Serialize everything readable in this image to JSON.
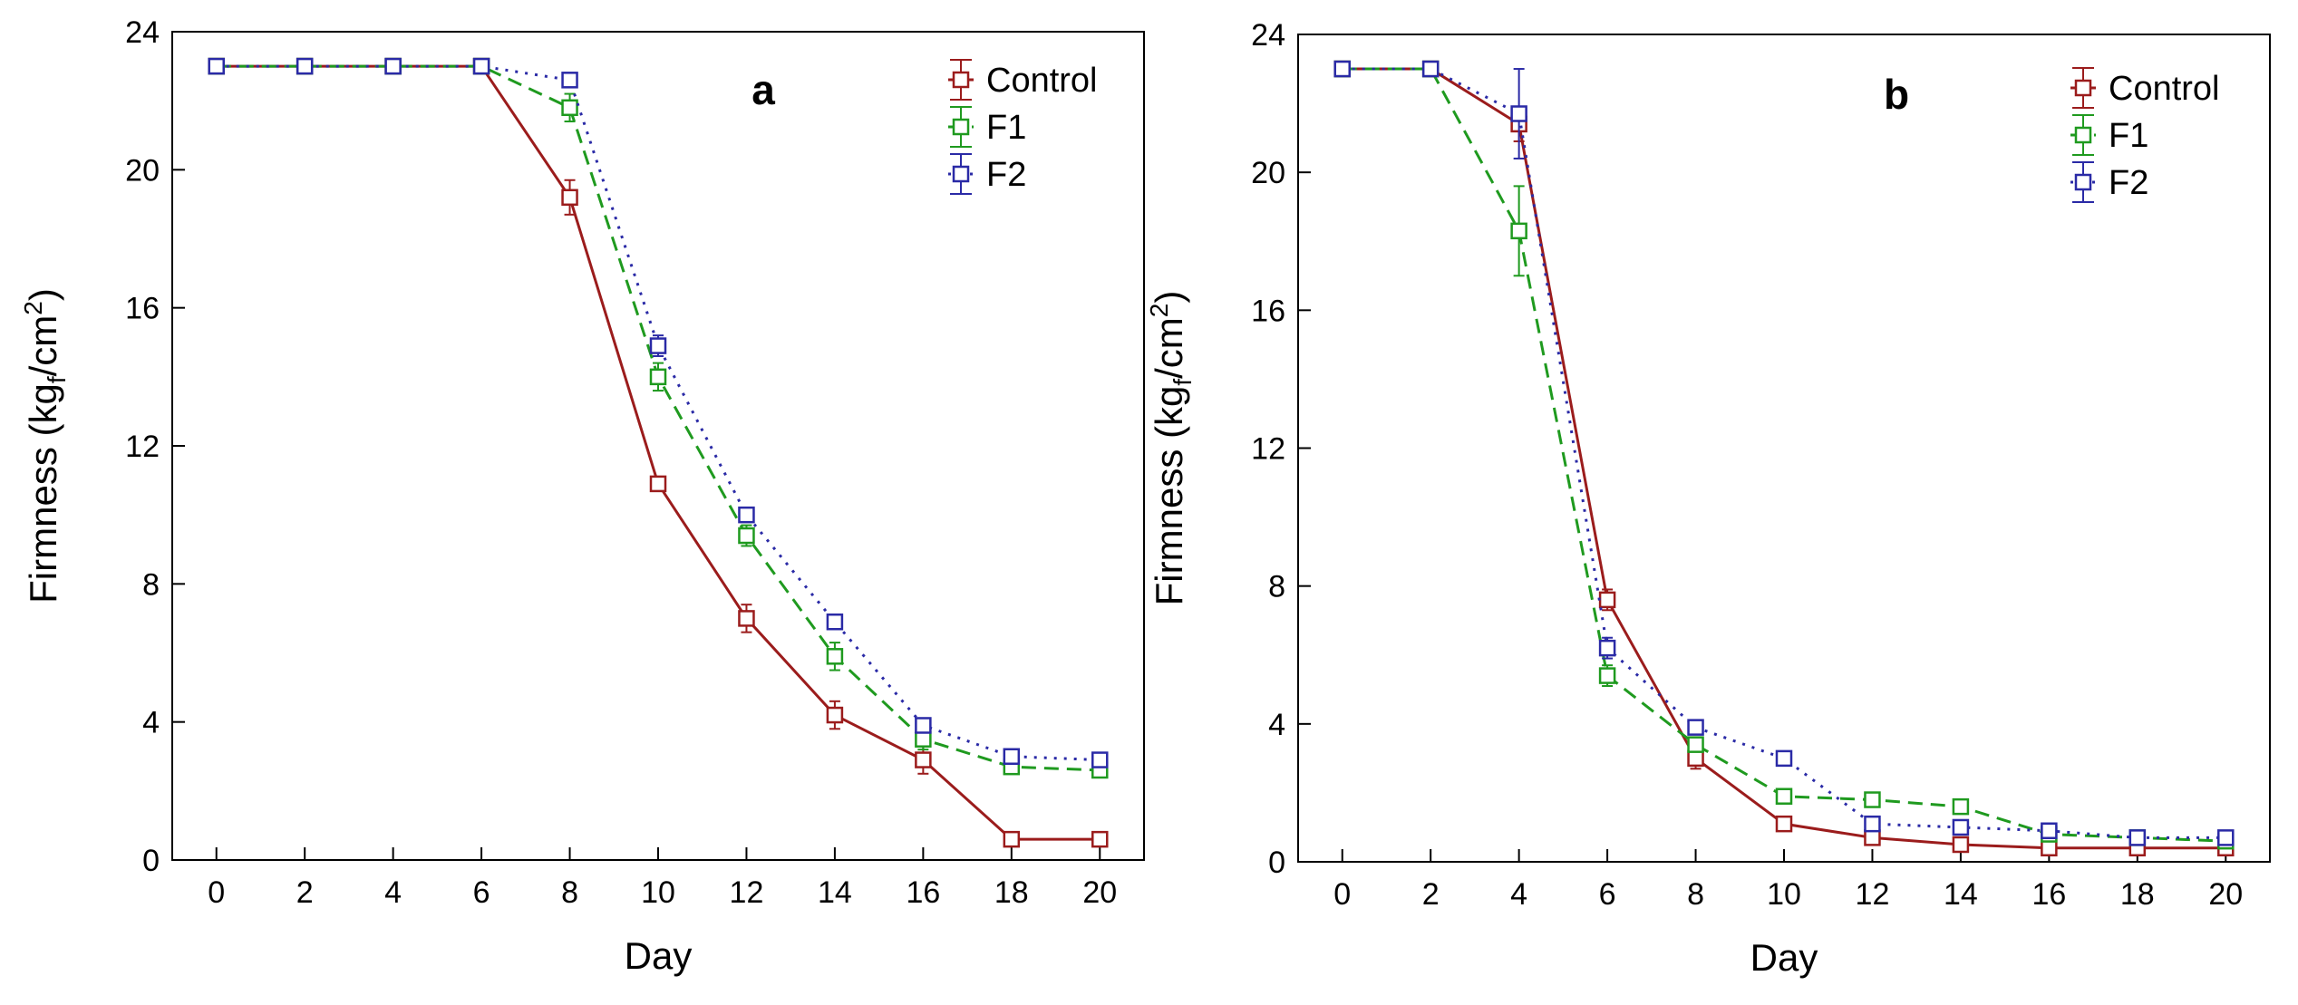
{
  "chart_data": [
    {
      "type": "line",
      "panel_label": "a",
      "xlabel": "Day",
      "ylabel_prefix": "Firmness (kg",
      "ylabel_sub": "f",
      "ylabel_mid": "/cm",
      "ylabel_sup": "2",
      "ylabel_suffix": ")",
      "xlim": [
        -1,
        21
      ],
      "ylim": [
        0,
        24
      ],
      "xticks": [
        0,
        2,
        4,
        6,
        8,
        10,
        12,
        14,
        16,
        18,
        20
      ],
      "yticks": [
        0,
        4,
        8,
        12,
        16,
        20,
        24
      ],
      "x": [
        0,
        2,
        4,
        6,
        8,
        10,
        12,
        14,
        16,
        18,
        20
      ],
      "legend_position": "top-right",
      "series": [
        {
          "name": "Control",
          "color": "#9b1c1c",
          "dash": "solid",
          "values": [
            23.0,
            23.0,
            23.0,
            23.0,
            19.2,
            10.9,
            7.0,
            4.2,
            2.9,
            0.6,
            0.6
          ],
          "errors": [
            0.1,
            0.1,
            0.1,
            0.1,
            0.5,
            0.2,
            0.4,
            0.4,
            0.4,
            0.1,
            0.1
          ]
        },
        {
          "name": "F1",
          "color": "#1f9a1f",
          "dash": "dashed",
          "values": [
            23.0,
            23.0,
            23.0,
            23.0,
            21.8,
            14.0,
            9.4,
            5.9,
            3.5,
            2.7,
            2.6
          ],
          "errors": [
            0.1,
            0.1,
            0.1,
            0.1,
            0.4,
            0.4,
            0.3,
            0.4,
            0.3,
            0.1,
            0.1
          ]
        },
        {
          "name": "F2",
          "color": "#2a2aa6",
          "dash": "dotted",
          "values": [
            23.0,
            23.0,
            23.0,
            23.0,
            22.6,
            14.9,
            10.0,
            6.9,
            3.9,
            3.0,
            2.9
          ],
          "errors": [
            0.1,
            0.1,
            0.1,
            0.1,
            0.2,
            0.3,
            0.2,
            0.2,
            0.2,
            0.1,
            0.1
          ]
        }
      ]
    },
    {
      "type": "line",
      "panel_label": "b",
      "xlabel": "Day",
      "ylabel_prefix": "Firmness (kg",
      "ylabel_sub": "f",
      "ylabel_mid": "/cm",
      "ylabel_sup": "2",
      "ylabel_suffix": ")",
      "xlim": [
        -1,
        21
      ],
      "ylim": [
        0,
        24
      ],
      "xticks": [
        0,
        2,
        4,
        6,
        8,
        10,
        12,
        14,
        16,
        18,
        20
      ],
      "yticks": [
        0,
        4,
        8,
        12,
        16,
        20,
        24
      ],
      "x": [
        0,
        2,
        4,
        6,
        8,
        10,
        12,
        14,
        16,
        18,
        20
      ],
      "legend_position": "top-right",
      "series": [
        {
          "name": "Control",
          "color": "#9b1c1c",
          "dash": "solid",
          "values": [
            23.0,
            23.0,
            21.4,
            7.6,
            3.0,
            1.1,
            0.7,
            0.5,
            0.4,
            0.4,
            0.4
          ],
          "errors": [
            0.1,
            0.1,
            0.5,
            0.3,
            0.3,
            0.1,
            0.1,
            0.1,
            0.1,
            0.1,
            0.1
          ]
        },
        {
          "name": "F1",
          "color": "#1f9a1f",
          "dash": "dashed",
          "values": [
            23.0,
            23.0,
            18.3,
            5.4,
            3.4,
            1.9,
            1.8,
            1.6,
            0.8,
            0.7,
            0.6
          ],
          "errors": [
            0.1,
            0.1,
            1.3,
            0.3,
            0.2,
            0.1,
            0.1,
            0.1,
            0.1,
            0.1,
            0.1
          ]
        },
        {
          "name": "F2",
          "color": "#2a2aa6",
          "dash": "dotted",
          "values": [
            23.0,
            23.0,
            21.7,
            6.2,
            3.9,
            3.0,
            1.1,
            1.0,
            0.9,
            0.7,
            0.7
          ],
          "errors": [
            0.1,
            0.1,
            1.3,
            0.3,
            0.1,
            0.1,
            0.1,
            0.1,
            0.1,
            0.1,
            0.1
          ]
        }
      ]
    }
  ]
}
